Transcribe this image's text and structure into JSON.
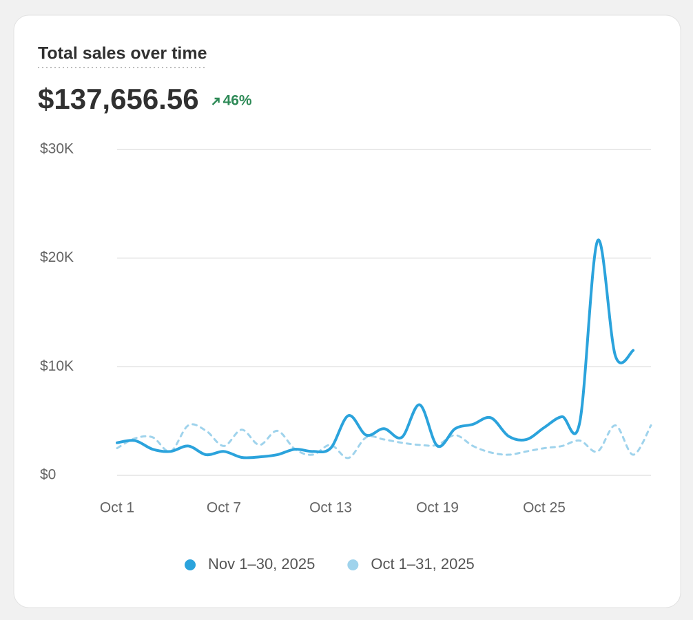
{
  "chart_data": {
    "type": "line",
    "title": "Total sales over time",
    "total": "$137,656.56",
    "change": "46%",
    "categories": [
      "Oct 1",
      null,
      null,
      null,
      null,
      null,
      "Oct 7",
      null,
      null,
      null,
      null,
      null,
      "Oct 13",
      null,
      null,
      null,
      null,
      null,
      "Oct 19",
      null,
      null,
      null,
      null,
      null,
      "Oct 25",
      null,
      null,
      null,
      null,
      null,
      null
    ],
    "series": [
      {
        "name": "Nov 1–30, 2025",
        "color": "#2ba3dc",
        "dashed": false,
        "values": [
          3000,
          3200,
          2400,
          2200,
          2700,
          1900,
          2200,
          1650,
          1700,
          1900,
          2400,
          2200,
          2500,
          5500,
          3700,
          4300,
          3500,
          6500,
          2700,
          4300,
          4700,
          5300,
          3600,
          3300,
          4400,
          5400,
          4900,
          21600,
          11000,
          11500,
          null
        ]
      },
      {
        "name": "Oct 1–31, 2025",
        "color": "#9fd3ec",
        "dashed": true,
        "values": [
          2500,
          3400,
          3500,
          2200,
          4600,
          4100,
          2700,
          4200,
          2800,
          4100,
          2400,
          1900,
          2800,
          1600,
          3500,
          3300,
          3000,
          2800,
          2800,
          3700,
          2700,
          2100,
          1900,
          2200,
          2500,
          2700,
          3200,
          2200,
          4600,
          1900,
          4600
        ]
      }
    ],
    "ylim": [
      0,
      30000
    ],
    "yticks": [
      {
        "value": 0,
        "label": "$0"
      },
      {
        "value": 10000,
        "label": "$10K"
      },
      {
        "value": 20000,
        "label": "$20K"
      },
      {
        "value": 30000,
        "label": "$30K"
      }
    ],
    "grid": true,
    "legend": "bottom"
  }
}
